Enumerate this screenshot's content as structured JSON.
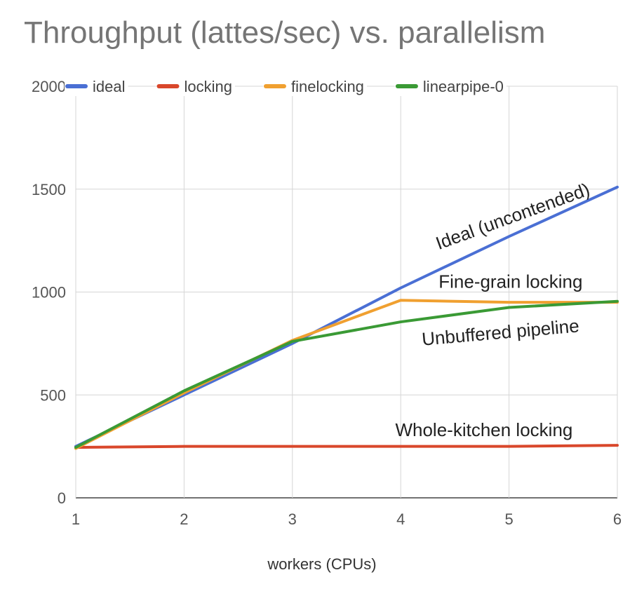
{
  "chart_data": {
    "type": "line",
    "title": "Throughput (lattes/sec) vs. parallelism",
    "xlabel": "workers (CPUs)",
    "ylabel": "",
    "x": [
      1,
      2,
      3,
      4,
      5,
      6
    ],
    "xlim": [
      1,
      6
    ],
    "ylim": [
      0,
      2000
    ],
    "yticks": [
      0,
      500,
      1000,
      1500,
      2000
    ],
    "xticks": [
      1,
      2,
      3,
      4,
      5,
      6
    ],
    "grid": true,
    "legend_position": "top",
    "series": [
      {
        "name": "ideal",
        "color": "#4a6fd4",
        "values": [
          250,
          500,
          750,
          1020,
          1270,
          1510
        ]
      },
      {
        "name": "locking",
        "color": "#d9472b",
        "values": [
          245,
          250,
          250,
          250,
          250,
          255
        ]
      },
      {
        "name": "finelocking",
        "color": "#f0a030",
        "values": [
          240,
          510,
          765,
          960,
          950,
          950
        ]
      },
      {
        "name": "linearpipe-0",
        "color": "#3a9a35",
        "values": [
          245,
          520,
          760,
          855,
          925,
          955
        ]
      }
    ],
    "annotations": [
      {
        "text": "Ideal (uncontended)",
        "x": 4.35,
        "y": 1205,
        "rotate": -20
      },
      {
        "text": "Fine-grain locking",
        "x": 4.35,
        "y": 1020,
        "rotate": 0
      },
      {
        "text": "Unbuffered pipeline",
        "x": 4.2,
        "y": 740,
        "rotate": -5
      },
      {
        "text": "Whole-kitchen locking",
        "x": 3.95,
        "y": 300,
        "rotate": 0
      }
    ]
  }
}
